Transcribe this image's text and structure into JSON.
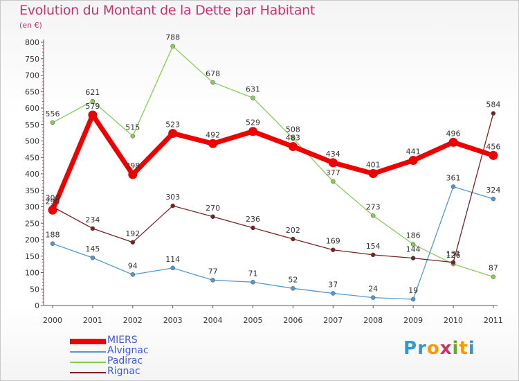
{
  "header": {
    "title": "Evolution du Montant de la Dette par Habitant",
    "unit": "(en €)"
  },
  "logo": {
    "letters": [
      "P",
      "r",
      "o",
      "x",
      "i",
      "t",
      "i"
    ],
    "colors": [
      "#3399cc",
      "#3399cc",
      "#ff9900",
      "#cc3366",
      "#66aa22",
      "#ff9900",
      "#3399cc"
    ]
  },
  "chart_data": {
    "type": "line",
    "title": "Evolution du Montant de la Dette par Habitant",
    "ylabel": "(en €)",
    "xlabel": "",
    "x": [
      "2000",
      "2001",
      "2002",
      "2003",
      "2004",
      "2005",
      "2006",
      "2007",
      "2008",
      "2009",
      "2010",
      "2011"
    ],
    "ylim": [
      0,
      800
    ],
    "yticks": [
      0,
      50,
      100,
      150,
      200,
      250,
      300,
      350,
      400,
      450,
      500,
      550,
      600,
      650,
      700,
      750,
      800
    ],
    "grid": false,
    "legend_position": "bottom-left",
    "series": [
      {
        "name": "MIERS",
        "color": "#ee0000",
        "values": [
          290,
          579,
          398,
          523,
          492,
          529,
          483,
          434,
          401,
          441,
          496,
          456
        ]
      },
      {
        "name": "Alvignac",
        "color": "#5599cc",
        "values": [
          188,
          145,
          94,
          114,
          77,
          71,
          52,
          37,
          24,
          19,
          361,
          324
        ]
      },
      {
        "name": "Padirac",
        "color": "#88cc55",
        "values": [
          556,
          621,
          515,
          788,
          678,
          631,
          508,
          377,
          273,
          186,
          126,
          87
        ]
      },
      {
        "name": "Rignac",
        "color": "#772222",
        "values": [
          300,
          234,
          192,
          303,
          270,
          236,
          202,
          169,
          154,
          144,
          131,
          584
        ]
      }
    ]
  }
}
